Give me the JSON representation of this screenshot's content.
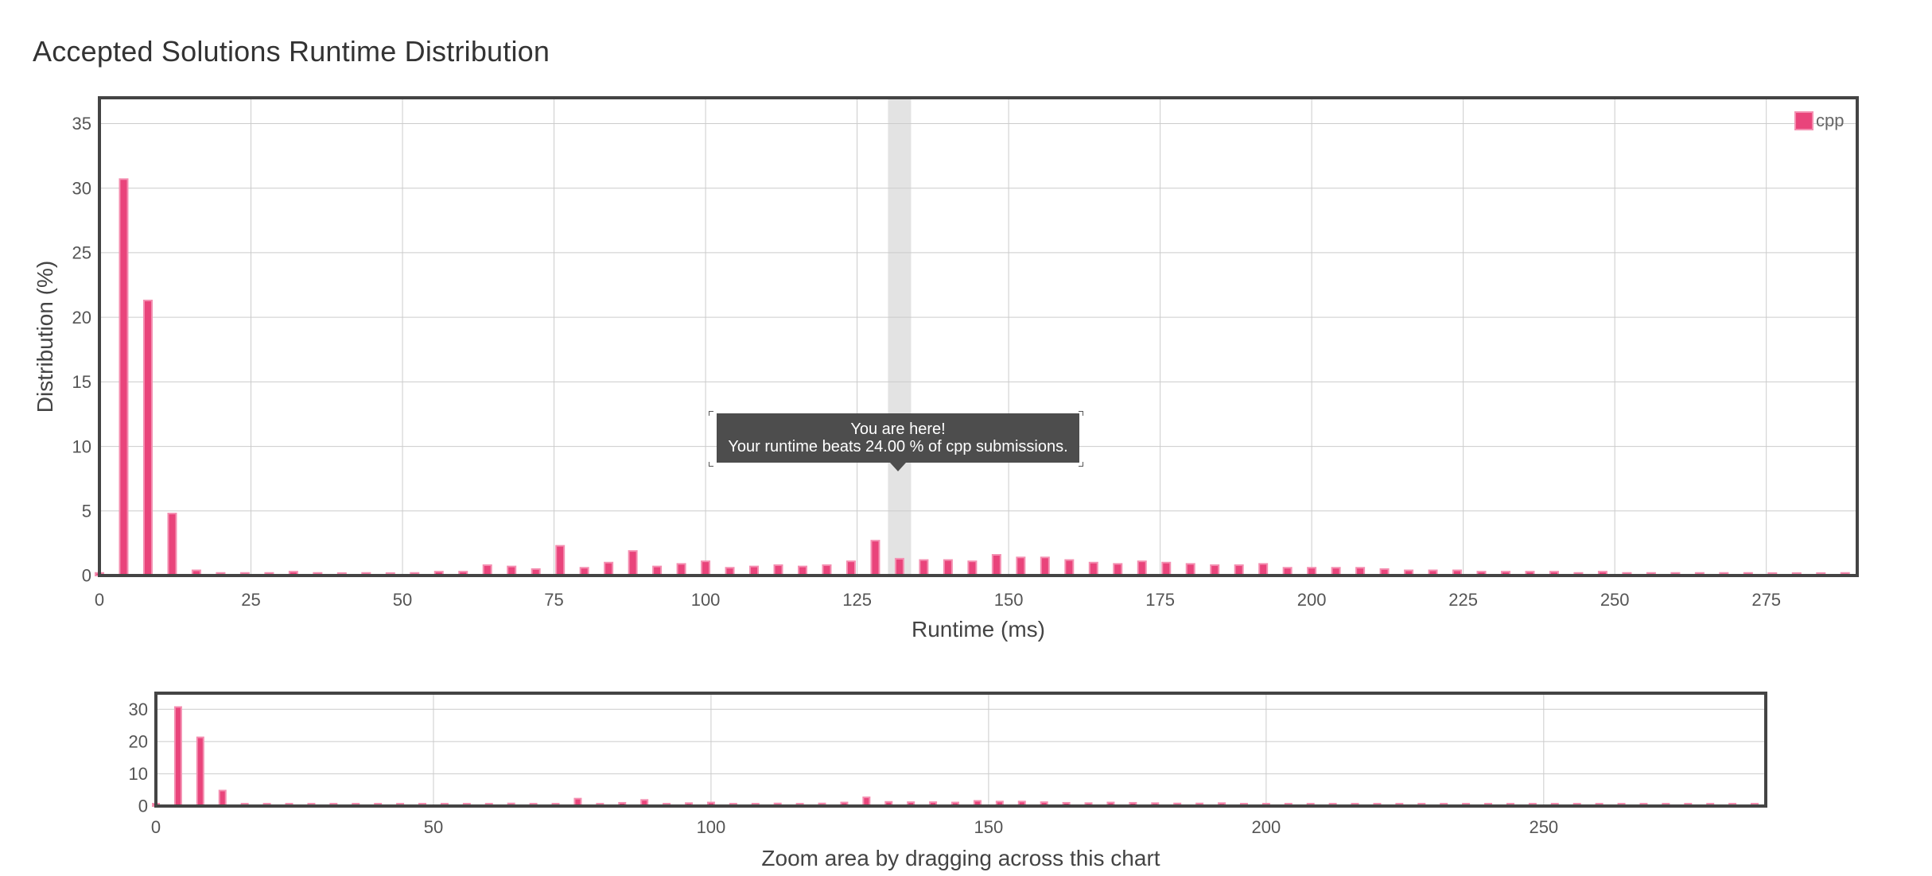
{
  "title": "Accepted Solutions Runtime Distribution",
  "tooltip": {
    "line1": "You are here!",
    "line2": "Your runtime beats 24.00 % of cpp submissions."
  },
  "colors": {
    "bar_fill": "#e9447b",
    "bar_stroke": "#f48fb1",
    "highlight_band": "#e3e3e3",
    "grid": "#cccccc",
    "frame": "#444444",
    "tooltip_bg": "#4d4d4d"
  },
  "chart_data": [
    {
      "type": "bar",
      "role": "main",
      "xlabel": "Runtime (ms)",
      "ylabel": "Distribution (%)",
      "xlim": [
        0,
        290
      ],
      "ylim": [
        0,
        37
      ],
      "xticks": [
        0,
        25,
        50,
        75,
        100,
        125,
        150,
        175,
        200,
        225,
        250,
        275
      ],
      "yticks": [
        0,
        5,
        10,
        15,
        20,
        25,
        30,
        35
      ],
      "grid": true,
      "legend": {
        "position": "top-right",
        "entries": [
          "cpp"
        ]
      },
      "highlight_x": 132,
      "series": [
        {
          "name": "cpp",
          "x": [
            0,
            4,
            8,
            12,
            16,
            20,
            24,
            28,
            32,
            36,
            40,
            44,
            48,
            52,
            56,
            60,
            64,
            68,
            72,
            76,
            80,
            84,
            88,
            92,
            96,
            100,
            104,
            108,
            112,
            116,
            120,
            124,
            128,
            132,
            136,
            140,
            144,
            148,
            152,
            156,
            160,
            164,
            168,
            172,
            176,
            180,
            184,
            188,
            192,
            196,
            200,
            204,
            208,
            212,
            216,
            220,
            224,
            228,
            232,
            236,
            240,
            244,
            248,
            252,
            256,
            260,
            264,
            268,
            272,
            276,
            280,
            284,
            288
          ],
          "values": [
            0.2,
            30.7,
            21.3,
            4.8,
            0.4,
            0.2,
            0.2,
            0.2,
            0.3,
            0.2,
            0.1,
            0.2,
            0.1,
            0.2,
            0.3,
            0.3,
            0.8,
            0.7,
            0.5,
            2.3,
            0.6,
            1.0,
            1.9,
            0.7,
            0.9,
            1.1,
            0.6,
            0.7,
            0.8,
            0.7,
            0.8,
            1.1,
            2.7,
            1.3,
            1.2,
            1.2,
            1.1,
            1.6,
            1.4,
            1.4,
            1.2,
            1.0,
            0.9,
            1.1,
            1.0,
            0.9,
            0.8,
            0.8,
            0.9,
            0.6,
            0.6,
            0.6,
            0.6,
            0.5,
            0.4,
            0.4,
            0.4,
            0.3,
            0.3,
            0.3,
            0.3,
            0.2,
            0.3,
            0.2,
            0.2,
            0.2,
            0.2,
            0.2,
            0.2,
            0.1,
            0.1,
            0.1,
            0.2
          ]
        }
      ]
    },
    {
      "type": "bar",
      "role": "navigator",
      "xlabel": "Zoom area by dragging across this chart",
      "xlim": [
        0,
        290
      ],
      "ylim": [
        0,
        35
      ],
      "xticks": [
        0,
        50,
        100,
        150,
        200,
        250
      ],
      "yticks": [
        0,
        10,
        20,
        30
      ],
      "grid": true
    }
  ]
}
